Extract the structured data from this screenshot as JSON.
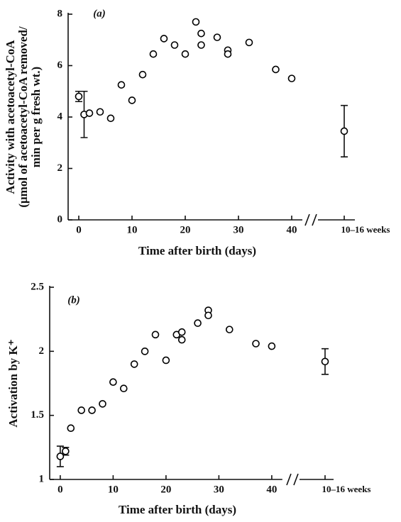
{
  "chart_data": [
    {
      "type": "scatter",
      "panel": "(a)",
      "ylabel": [
        "Activity with acetoacetyl-CoA",
        "(μmol of acetoacetyl-CoA removed/",
        "min per g fresh wt.)"
      ],
      "xlabel": "Time after birth (days)",
      "x": [
        0,
        1,
        2,
        4,
        6,
        8,
        10,
        12,
        14,
        16,
        18,
        20,
        22,
        23,
        23,
        26,
        28,
        28,
        32,
        37,
        40
      ],
      "values": [
        4.8,
        4.1,
        4.15,
        4.2,
        3.95,
        5.25,
        4.65,
        5.65,
        6.45,
        7.05,
        6.8,
        6.45,
        7.7,
        7.25,
        6.8,
        7.1,
        6.6,
        6.45,
        6.9,
        5.85,
        5.5
      ],
      "errors": [
        0.2,
        0.9,
        null,
        null,
        null,
        null,
        null,
        null,
        null,
        null,
        null,
        null,
        null,
        null,
        null,
        null,
        null,
        null,
        null,
        null,
        null
      ],
      "break_label": "10–16 weeks",
      "break_value": 3.45,
      "break_error": 1.0,
      "color": "#000000",
      "xlim": [
        -2,
        42
      ],
      "xticks": [
        0,
        10,
        20,
        30,
        40
      ],
      "ylim": [
        0,
        8
      ],
      "yticks": [
        0,
        2,
        4,
        6,
        8
      ]
    },
    {
      "type": "scatter",
      "panel": "(b)",
      "ylabel": [
        "Activation by K⁺"
      ],
      "xlabel": "Time after birth (days)",
      "x": [
        0,
        1,
        2,
        4,
        6,
        8,
        10,
        12,
        14,
        16,
        18,
        20,
        22,
        23,
        23,
        26,
        28,
        28,
        32,
        37,
        40
      ],
      "values": [
        1.18,
        1.22,
        1.4,
        1.54,
        1.54,
        1.59,
        1.76,
        1.71,
        1.9,
        2.0,
        2.13,
        1.93,
        2.13,
        2.15,
        2.09,
        2.22,
        2.32,
        2.28,
        2.17,
        2.06,
        2.04
      ],
      "errors": [
        0.08,
        0.03,
        null,
        null,
        null,
        null,
        null,
        null,
        null,
        null,
        null,
        null,
        null,
        null,
        null,
        null,
        null,
        null,
        null,
        null,
        null
      ],
      "break_label": "10–16 weeks",
      "break_value": 1.92,
      "break_error": 0.1,
      "color": "#000000",
      "xlim": [
        -2,
        42
      ],
      "xticks": [
        0,
        10,
        20,
        30,
        40
      ],
      "ylim": [
        1,
        2.5
      ],
      "yticks": [
        1,
        1.5,
        2,
        2.5
      ]
    }
  ]
}
